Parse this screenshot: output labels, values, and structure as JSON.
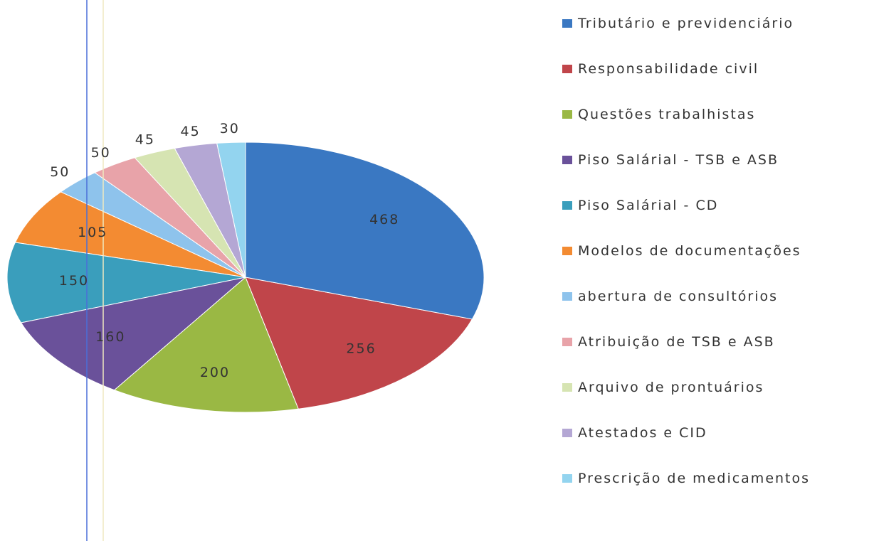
{
  "chart_data": {
    "type": "pie",
    "categories": [
      "Tributário e previdenciário",
      "Responsabilidade civil",
      "Questões trabalhistas",
      "Piso Salárial - TSB e ASB",
      "Piso Salárial - CD",
      "Modelos de documentações",
      "abertura de consultórios",
      "Atribuição de TSB e ASB",
      "Arquivo de prontuários",
      "Atestados e CID",
      "Prescrição de medicamentos"
    ],
    "values": [
      468,
      256,
      200,
      160,
      150,
      105,
      50,
      50,
      45,
      45,
      30
    ],
    "colors": [
      "#3a78c2",
      "#c0454a",
      "#9ab844",
      "#6a519a",
      "#3a9ebc",
      "#f38b32",
      "#8ec3ec",
      "#e8a3a9",
      "#d6e4b2",
      "#b4a7d4",
      "#93d4ef"
    ],
    "legend": "right"
  }
}
